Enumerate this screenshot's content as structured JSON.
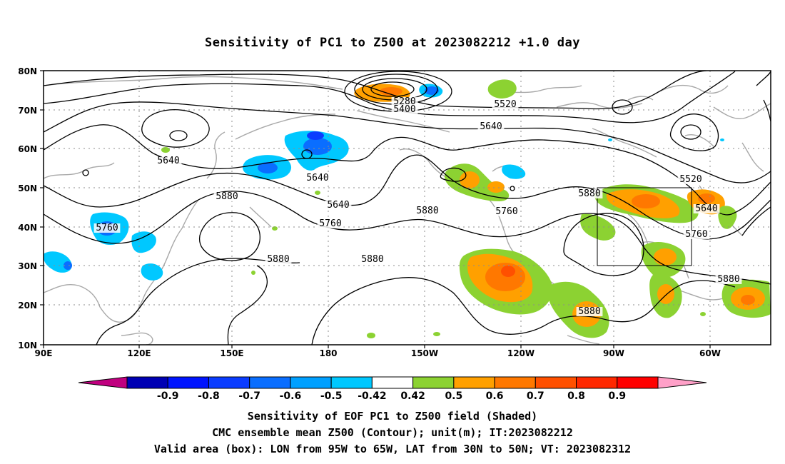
{
  "title": "Sensitivity of PC1 to Z500 at 2023082212 +1.0 day",
  "lat_ticks": [
    "80N",
    "70N",
    "60N",
    "50N",
    "40N",
    "30N",
    "20N",
    "10N"
  ],
  "lon_ticks": [
    "90E",
    "120E",
    "150E",
    "180",
    "150W",
    "120W",
    "90W",
    "60W"
  ],
  "contour_labels": [
    {
      "text": "5280"
    },
    {
      "text": "5400"
    },
    {
      "text": "5520"
    },
    {
      "text": "5640"
    },
    {
      "text": "5640"
    },
    {
      "text": "5640"
    },
    {
      "text": "5760"
    },
    {
      "text": "5880"
    },
    {
      "text": "5640"
    },
    {
      "text": "5760"
    },
    {
      "text": "5880"
    },
    {
      "text": "5760"
    },
    {
      "text": "5880"
    },
    {
      "text": "5880"
    },
    {
      "text": "5520"
    },
    {
      "text": "5640"
    },
    {
      "text": "5760"
    },
    {
      "text": "5880"
    },
    {
      "text": "5880"
    },
    {
      "text": "5880"
    }
  ],
  "colorbar": {
    "colors": [
      "#c0007f",
      "#0000b4",
      "#0014ff",
      "#0a3cff",
      "#0a6eff",
      "#00a0ff",
      "#00c8ff",
      "#ffffff",
      "#8cd232",
      "#ffa000",
      "#ff7800",
      "#ff5000",
      "#ff2800",
      "#ff0000",
      "#ffa0c8"
    ],
    "labels": [
      "-0.9",
      "-0.8",
      "-0.7",
      "-0.6",
      "-0.5",
      "-0.42",
      "0.42",
      "0.5",
      "0.6",
      "0.7",
      "0.8",
      "0.9"
    ]
  },
  "captions": [
    "Sensitivity of EOF PC1 to Z500 field (Shaded)",
    "CMC ensemble mean Z500 (Contour); unit(m); IT:2023082212",
    "Valid area (box): LON from 95W to 65W, LAT from 30N to 50N; VT: 2023082312"
  ]
}
